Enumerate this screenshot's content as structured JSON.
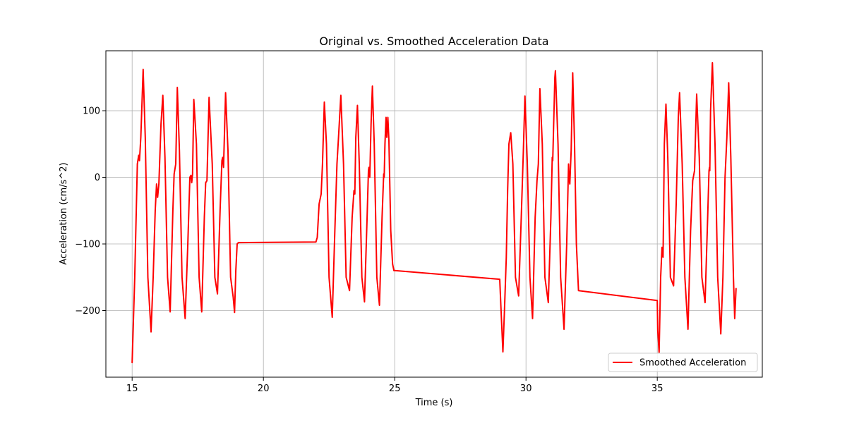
{
  "chart_data": {
    "type": "line",
    "title": "Original vs. Smoothed Acceleration Data",
    "xlabel": "Time (s)",
    "ylabel": "Acceleration (cm/s^2)",
    "xlim": [
      14,
      39
    ],
    "ylim": [
      -300,
      190
    ],
    "xticks": [
      15,
      20,
      25,
      30,
      35
    ],
    "yticks": [
      -200,
      -100,
      0,
      100
    ],
    "grid": true,
    "legend_position": "lower-right",
    "series": [
      {
        "name": "Smoothed Acceleration",
        "color": "#ff0000",
        "points": [
          [
            15.0,
            -278
          ],
          [
            15.1,
            -150
          ],
          [
            15.2,
            20
          ],
          [
            15.25,
            33
          ],
          [
            15.28,
            25
          ],
          [
            15.33,
            60
          ],
          [
            15.42,
            162
          ],
          [
            15.5,
            60
          ],
          [
            15.6,
            -150
          ],
          [
            15.72,
            -232
          ],
          [
            15.8,
            -150
          ],
          [
            15.88,
            -50
          ],
          [
            15.93,
            -10
          ],
          [
            15.97,
            -30
          ],
          [
            16.02,
            -10
          ],
          [
            16.1,
            80
          ],
          [
            16.17,
            123
          ],
          [
            16.25,
            30
          ],
          [
            16.35,
            -150
          ],
          [
            16.45,
            -202
          ],
          [
            16.55,
            -50
          ],
          [
            16.6,
            5
          ],
          [
            16.66,
            20
          ],
          [
            16.72,
            135
          ],
          [
            16.8,
            40
          ],
          [
            16.9,
            -150
          ],
          [
            17.02,
            -212
          ],
          [
            17.12,
            -100
          ],
          [
            17.2,
            0
          ],
          [
            17.24,
            3
          ],
          [
            17.27,
            -8
          ],
          [
            17.3,
            5
          ],
          [
            17.35,
            117
          ],
          [
            17.45,
            50
          ],
          [
            17.55,
            -150
          ],
          [
            17.65,
            -202
          ],
          [
            17.75,
            -60
          ],
          [
            17.8,
            -8
          ],
          [
            17.85,
            -5
          ],
          [
            17.93,
            120
          ],
          [
            18.05,
            20
          ],
          [
            18.15,
            -150
          ],
          [
            18.25,
            -175
          ],
          [
            18.35,
            -50
          ],
          [
            18.42,
            25
          ],
          [
            18.45,
            30
          ],
          [
            18.48,
            15
          ],
          [
            18.56,
            127
          ],
          [
            18.65,
            40
          ],
          [
            18.75,
            -150
          ],
          [
            18.85,
            -180
          ],
          [
            18.9,
            -203
          ],
          [
            18.95,
            -140
          ],
          [
            19.0,
            -100
          ],
          [
            19.05,
            -98
          ],
          [
            22.0,
            -97
          ],
          [
            22.05,
            -90
          ],
          [
            22.12,
            -40
          ],
          [
            22.2,
            -25
          ],
          [
            22.25,
            20
          ],
          [
            22.32,
            113
          ],
          [
            22.4,
            50
          ],
          [
            22.5,
            -150
          ],
          [
            22.62,
            -210
          ],
          [
            22.72,
            -80
          ],
          [
            22.8,
            20
          ],
          [
            22.86,
            60
          ],
          [
            22.95,
            123
          ],
          [
            23.05,
            20
          ],
          [
            23.15,
            -150
          ],
          [
            23.28,
            -170
          ],
          [
            23.38,
            -60
          ],
          [
            23.45,
            -20
          ],
          [
            23.48,
            -25
          ],
          [
            23.52,
            60
          ],
          [
            23.58,
            108
          ],
          [
            23.65,
            20
          ],
          [
            23.75,
            -150
          ],
          [
            23.85,
            -187
          ],
          [
            23.95,
            -60
          ],
          [
            24.0,
            10
          ],
          [
            24.02,
            15
          ],
          [
            24.05,
            0
          ],
          [
            24.1,
            80
          ],
          [
            24.15,
            137
          ],
          [
            24.22,
            50
          ],
          [
            24.32,
            -150
          ],
          [
            24.42,
            -192
          ],
          [
            24.52,
            -60
          ],
          [
            24.58,
            5
          ],
          [
            24.6,
            0
          ],
          [
            24.63,
            50
          ],
          [
            24.67,
            90
          ],
          [
            24.7,
            60
          ],
          [
            24.74,
            90
          ],
          [
            24.78,
            55
          ],
          [
            24.85,
            -80
          ],
          [
            24.92,
            -130
          ],
          [
            24.97,
            -140
          ],
          [
            25.0,
            -140
          ],
          [
            29.0,
            -153
          ],
          [
            29.05,
            -200
          ],
          [
            29.12,
            -262
          ],
          [
            29.18,
            -200
          ],
          [
            29.25,
            -120
          ],
          [
            29.3,
            -20
          ],
          [
            29.35,
            50
          ],
          [
            29.42,
            67
          ],
          [
            29.5,
            20
          ],
          [
            29.6,
            -150
          ],
          [
            29.72,
            -178
          ],
          [
            29.82,
            -60
          ],
          [
            29.9,
            40
          ],
          [
            29.96,
            122
          ],
          [
            30.05,
            20
          ],
          [
            30.15,
            -150
          ],
          [
            30.25,
            -212
          ],
          [
            30.35,
            -60
          ],
          [
            30.42,
            -5
          ],
          [
            30.47,
            20
          ],
          [
            30.53,
            133
          ],
          [
            30.62,
            50
          ],
          [
            30.72,
            -150
          ],
          [
            30.85,
            -188
          ],
          [
            30.95,
            -60
          ],
          [
            31.0,
            30
          ],
          [
            31.02,
            25
          ],
          [
            31.1,
            150
          ],
          [
            31.12,
            160
          ],
          [
            31.22,
            50
          ],
          [
            31.32,
            -150
          ],
          [
            31.45,
            -228
          ],
          [
            31.55,
            -100
          ],
          [
            31.62,
            20
          ],
          [
            31.65,
            -5
          ],
          [
            31.67,
            -10
          ],
          [
            31.72,
            40
          ],
          [
            31.78,
            157
          ],
          [
            31.85,
            50
          ],
          [
            31.92,
            -100
          ],
          [
            32.0,
            -170
          ],
          [
            35.0,
            -185
          ],
          [
            35.02,
            -230
          ],
          [
            35.07,
            -263
          ],
          [
            35.13,
            -150
          ],
          [
            35.18,
            -105
          ],
          [
            35.22,
            -120
          ],
          [
            35.27,
            50
          ],
          [
            35.33,
            110
          ],
          [
            35.4,
            30
          ],
          [
            35.5,
            -150
          ],
          [
            35.62,
            -163
          ],
          [
            35.72,
            -40
          ],
          [
            35.8,
            90
          ],
          [
            35.85,
            127
          ],
          [
            35.95,
            20
          ],
          [
            36.05,
            -150
          ],
          [
            36.17,
            -228
          ],
          [
            36.27,
            -80
          ],
          [
            36.35,
            -5
          ],
          [
            36.42,
            10
          ],
          [
            36.5,
            125
          ],
          [
            36.6,
            30
          ],
          [
            36.7,
            -150
          ],
          [
            36.82,
            -188
          ],
          [
            36.92,
            -60
          ],
          [
            36.97,
            10
          ],
          [
            36.99,
            15
          ],
          [
            37.0,
            10
          ],
          [
            37.03,
            100
          ],
          [
            37.1,
            172
          ],
          [
            37.2,
            50
          ],
          [
            37.3,
            -150
          ],
          [
            37.42,
            -235
          ],
          [
            37.5,
            -150
          ],
          [
            37.58,
            0
          ],
          [
            37.65,
            60
          ],
          [
            37.72,
            142
          ],
          [
            37.8,
            30
          ],
          [
            37.9,
            -150
          ],
          [
            37.95,
            -212
          ],
          [
            38.0,
            -167
          ]
        ]
      }
    ]
  }
}
